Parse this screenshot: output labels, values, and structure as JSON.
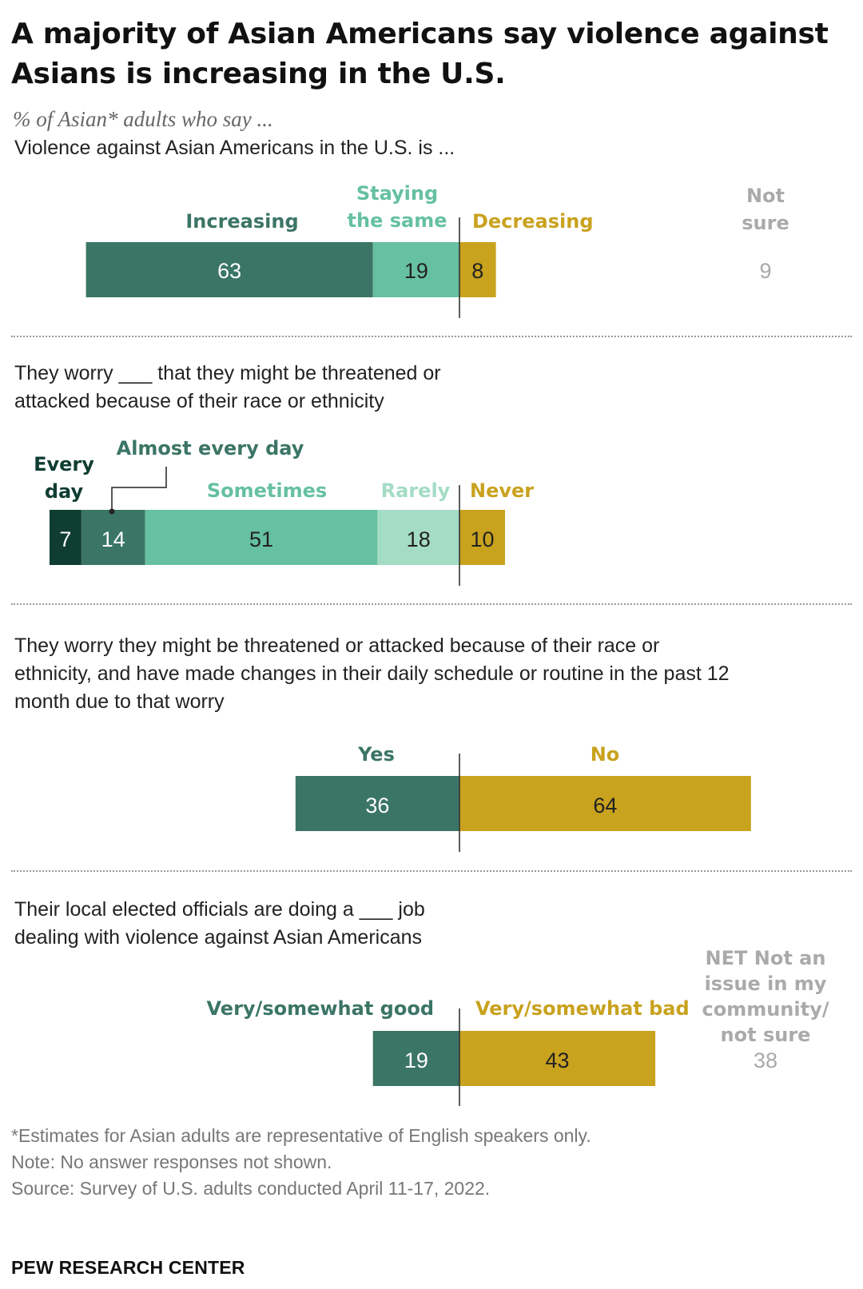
{
  "header": {
    "title": "A majority of Asian Americans say violence against Asians is increasing in the U.S.",
    "subtitle": "% of Asian* adults who say ..."
  },
  "colors": {
    "dark_teal": "#0f3d31",
    "teal": "#3b7565",
    "mint": "#66c0a2",
    "light_mint": "#a4dcc6",
    "gold": "#c9a21e",
    "gray": "#aaaaaa"
  },
  "chart_data": [
    {
      "type": "bar",
      "question": "Violence against Asian Americans in the U.S. is ...",
      "categories": [
        "Increasing",
        "Staying the same",
        "Decreasing"
      ],
      "values": [
        63,
        19,
        8
      ],
      "aside": {
        "label": "Not sure",
        "value": 9
      }
    },
    {
      "type": "bar",
      "question": "They worry ___ that they might be threatened or attacked because of their race or ethnicity",
      "categories": [
        "Every day",
        "Almost every day",
        "Sometimes",
        "Rarely",
        "Never"
      ],
      "values": [
        7,
        14,
        51,
        18,
        10
      ]
    },
    {
      "type": "bar",
      "question": "They worry they might be threatened or attacked because of their race or ethnicity, and have made changes in their daily schedule or routine in the past 12 month due to that worry",
      "categories": [
        "Yes",
        "No"
      ],
      "values": [
        36,
        64
      ]
    },
    {
      "type": "bar",
      "question": "Their local elected officials are doing a ___ job dealing with violence against Asian Americans",
      "categories": [
        "Very/somewhat good",
        "Very/somewhat bad"
      ],
      "values": [
        19,
        43
      ],
      "aside": {
        "label": "NET Not an issue in my community/ not sure",
        "value": 38
      }
    }
  ],
  "footer": {
    "asterisk": "*Estimates for Asian adults are representative of English speakers only.",
    "note": "Note: No answer responses not shown.",
    "source": "Source: Survey of U.S. adults conducted April 11-17, 2022.",
    "brand": "PEW RESEARCH CENTER"
  }
}
